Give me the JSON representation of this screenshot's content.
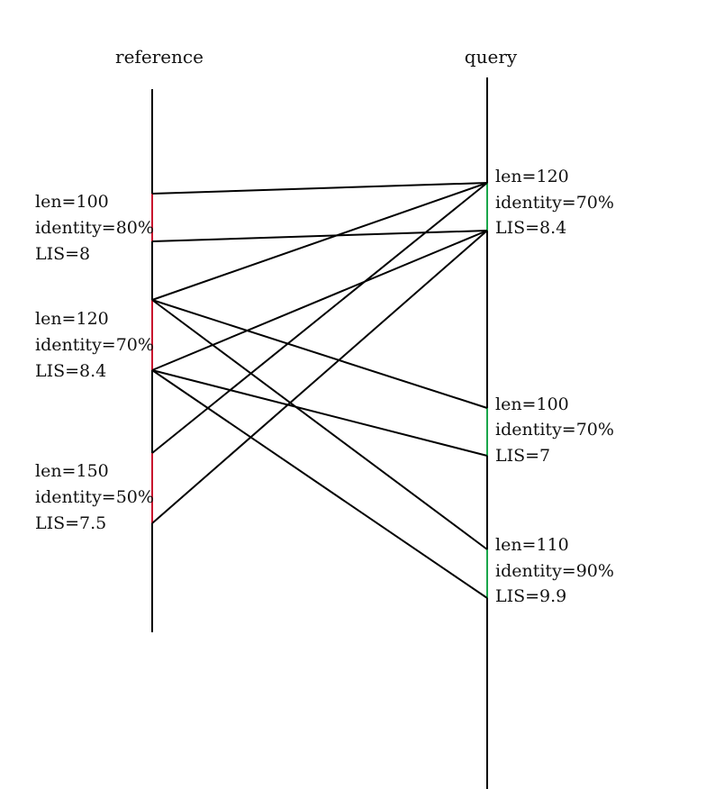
{
  "titles": {
    "reference": "reference",
    "query": "query"
  },
  "colors": {
    "axis": "#000000",
    "reference_segment": "#c8102e",
    "query_segment": "#1aa64a",
    "link": "#000000"
  },
  "reference_segments": [
    {
      "id": "r1",
      "len": "len=100",
      "identity": "identity=80%",
      "lis": "LIS=8"
    },
    {
      "id": "r2",
      "len": "len=120",
      "identity": "identity=70%",
      "lis": "LIS=8.4"
    },
    {
      "id": "r3",
      "len": "len=150",
      "identity": "identity=50%",
      "lis": "LIS=7.5"
    }
  ],
  "query_segments": [
    {
      "id": "q1",
      "len": "len=120",
      "identity": "identity=70%",
      "lis": "LIS=8.4"
    },
    {
      "id": "q2",
      "len": "len=100",
      "identity": "identity=70%",
      "lis": "LIS=7"
    },
    {
      "id": "q3",
      "len": "len=110",
      "identity": "identity=90%",
      "lis": "LIS=9.9"
    }
  ],
  "alignments": [
    {
      "from": "r1",
      "to": "q1"
    },
    {
      "from": "r2",
      "to": "q1"
    },
    {
      "from": "r2",
      "to": "q3"
    },
    {
      "from": "r2",
      "to": "q2"
    },
    {
      "from": "r3",
      "to": "q1"
    }
  ]
}
